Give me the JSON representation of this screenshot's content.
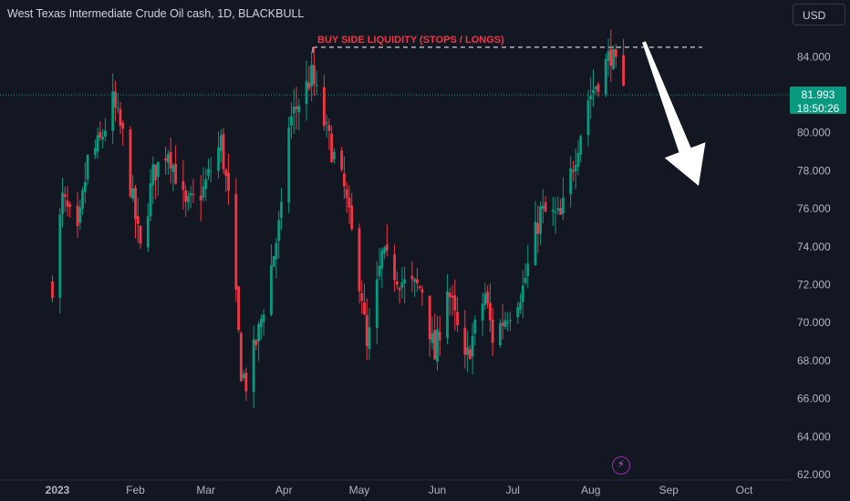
{
  "header": {
    "title": "West Texas Intermediate Crude Oil cash, 1D, BLACKBULL"
  },
  "controls": {
    "currency": "USD"
  },
  "price_tag": {
    "price": "81.993",
    "countdown": "18:50:26"
  },
  "annotation": {
    "label": "BUY SIDE LIQUIDITY (STOPS / LONGS)",
    "level": 84.5,
    "color": "#f23645"
  },
  "colors": {
    "up": "#089981",
    "down": "#f23645",
    "background": "#131722",
    "axis_text": "#b2b5be",
    "arrow": "#ffffff"
  },
  "icons": {
    "event": "lightning-icon"
  },
  "chart_data": {
    "type": "candlestick",
    "title": "West Texas Intermediate Crude Oil cash, 1D, BLACKBULL",
    "ylim": [
      62,
      86
    ],
    "y_ticks": [
      "84.000",
      "82.000",
      "80.000",
      "78.000",
      "76.000",
      "74.000",
      "72.000",
      "70.000",
      "68.000",
      "66.000",
      "64.000",
      "62.000"
    ],
    "x_ticks": [
      "2023",
      "Feb",
      "Mar",
      "Apr",
      "May",
      "Jun",
      "Jul",
      "Aug",
      "Sep",
      "Oct"
    ],
    "last_price": 81.993,
    "horizontal_level": 84.5,
    "close_path": [
      [
        "2022-12-30",
        72.0
      ],
      [
        "2023-01-03",
        76.5
      ],
      [
        "2023-01-09",
        74.5
      ],
      [
        "2023-01-13",
        78.5
      ],
      [
        "2023-01-18",
        79.5
      ],
      [
        "2023-01-23",
        81.6
      ],
      [
        "2023-01-27",
        79.8
      ],
      [
        "2023-02-03",
        73.8
      ],
      [
        "2023-02-08",
        77.8
      ],
      [
        "2023-02-14",
        79.2
      ],
      [
        "2023-02-21",
        76.0
      ],
      [
        "2023-02-28",
        77.0
      ],
      [
        "2023-03-07",
        79.5
      ],
      [
        "2023-03-10",
        76.5
      ],
      [
        "2023-03-15",
        67.5
      ],
      [
        "2023-03-17",
        66.8
      ],
      [
        "2023-03-22",
        69.5
      ],
      [
        "2023-03-31",
        75.7
      ],
      [
        "2023-04-03",
        80.5
      ],
      [
        "2023-04-12",
        83.0
      ],
      [
        "2023-04-18",
        80.0
      ],
      [
        "2023-04-25",
        77.0
      ],
      [
        "2023-05-02",
        71.5
      ],
      [
        "2023-05-04",
        68.5
      ],
      [
        "2023-05-10",
        73.5
      ],
      [
        "2023-05-19",
        72.0
      ],
      [
        "2023-05-26",
        71.8
      ],
      [
        "2023-05-31",
        68.2
      ],
      [
        "2023-06-05",
        72.0
      ],
      [
        "2023-06-12",
        67.8
      ],
      [
        "2023-06-20",
        71.5
      ],
      [
        "2023-06-23",
        69.2
      ],
      [
        "2023-06-29",
        70.5
      ],
      [
        "2023-07-05",
        71.8
      ],
      [
        "2023-07-12",
        75.8
      ],
      [
        "2023-07-20",
        75.5
      ],
      [
        "2023-07-31",
        81.8
      ],
      [
        "2023-08-04",
        82.8
      ],
      [
        "2023-08-09",
        84.2
      ],
      [
        "2023-08-14",
        82.0
      ]
    ]
  }
}
